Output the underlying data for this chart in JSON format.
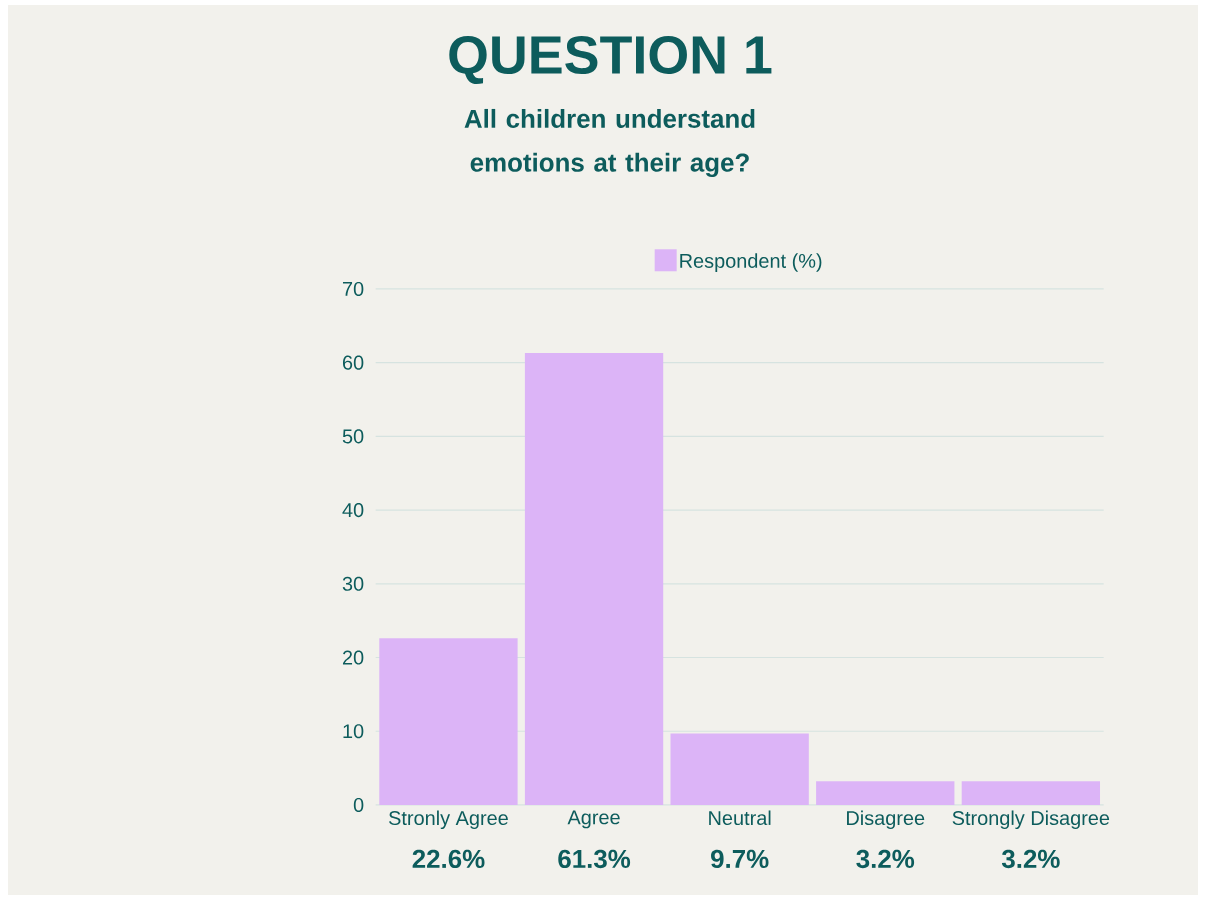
{
  "chart_data": {
    "type": "bar",
    "title": "QUESTION 1",
    "subtitle": "All children understand emotions at their age?",
    "categories": [
      "Stronly Agree",
      "Agree",
      "Neutral",
      "Disagree",
      "Strongly Disagree"
    ],
    "series": [
      {
        "name": "Respondent (%)",
        "color": "#dcb4f7",
        "values": [
          22.6,
          61.3,
          9.7,
          3.2,
          3.2
        ],
        "value_labels": [
          "22.6%",
          "61.3%",
          "9.7%",
          "3.2%",
          "3.2%"
        ]
      }
    ],
    "ylim": [
      0,
      70
    ],
    "yticks": [
      0,
      10,
      20,
      30,
      40,
      50,
      60,
      70
    ],
    "grid": "y",
    "legend": "top"
  }
}
